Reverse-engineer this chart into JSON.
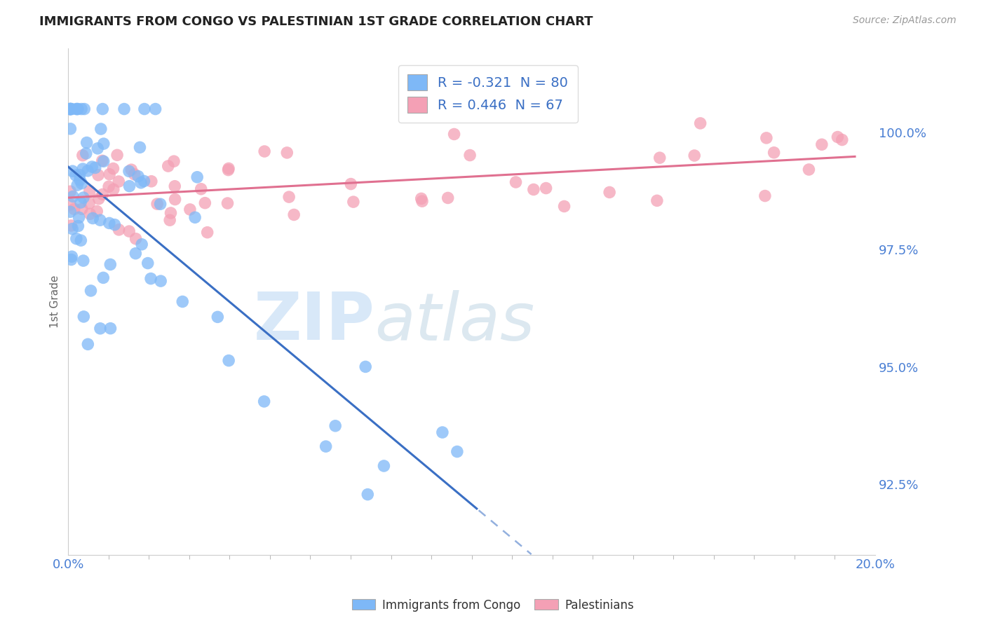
{
  "title": "IMMIGRANTS FROM CONGO VS PALESTINIAN 1ST GRADE CORRELATION CHART",
  "source": "Source: ZipAtlas.com",
  "ylabel": "1st Grade",
  "ytick_labels": [
    "92.5%",
    "95.0%",
    "97.5%",
    "100.0%"
  ],
  "ytick_values": [
    92.5,
    95.0,
    97.5,
    100.0
  ],
  "xlim": [
    0.0,
    20.0
  ],
  "ylim": [
    91.0,
    101.8
  ],
  "legend_congo": "R = -0.321  N = 80",
  "legend_palestinian": "R = 0.446  N = 67",
  "congo_color": "#7eb8f7",
  "palestinian_color": "#f4a0b5",
  "congo_trend_color": "#3a6fc4",
  "palestinian_trend_color": "#e07090",
  "background_color": "#ffffff",
  "grid_color": "#cccccc",
  "n_congo": 80,
  "n_pal": 67,
  "congo_seed": 12,
  "pal_seed": 99
}
